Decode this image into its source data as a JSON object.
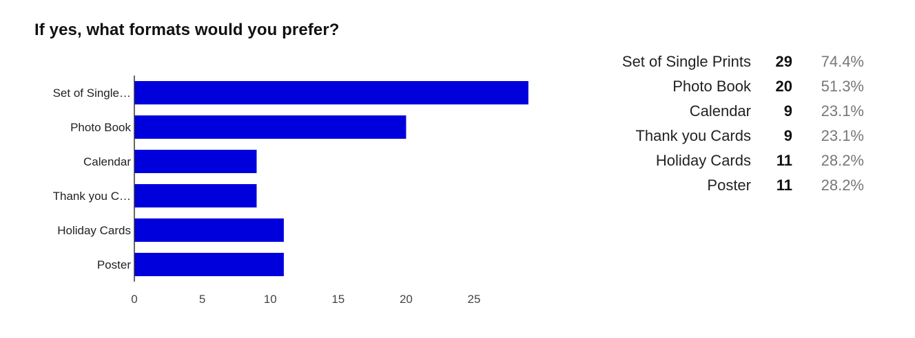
{
  "title": "If yes, what formats would you prefer?",
  "chart_data": {
    "type": "bar",
    "orientation": "horizontal",
    "title": "If yes, what formats would you prefer?",
    "categories": [
      "Set of Single Prints",
      "Photo Book",
      "Calendar",
      "Thank you Cards",
      "Holiday Cards",
      "Poster"
    ],
    "category_labels": [
      "Set of Single…",
      "Photo Book",
      "Calendar",
      "Thank you C…",
      "Holiday Cards",
      "Poster"
    ],
    "values": [
      29,
      20,
      9,
      9,
      11,
      11
    ],
    "xticks": [
      "0",
      "5",
      "10",
      "15",
      "20",
      "25"
    ],
    "xlim": [
      0,
      30
    ],
    "xlabel": "",
    "ylabel": "",
    "bar_color": "#0000dd",
    "grid": false
  },
  "summary": [
    {
      "label": "Set of Single Prints",
      "count": "29",
      "percent": "74.4%"
    },
    {
      "label": "Photo Book",
      "count": "20",
      "percent": "51.3%"
    },
    {
      "label": "Calendar",
      "count": "9",
      "percent": "23.1%"
    },
    {
      "label": "Thank you Cards",
      "count": "9",
      "percent": "23.1%"
    },
    {
      "label": "Holiday Cards",
      "count": "11",
      "percent": "28.2%"
    },
    {
      "label": "Poster",
      "count": "11",
      "percent": "28.2%"
    }
  ]
}
